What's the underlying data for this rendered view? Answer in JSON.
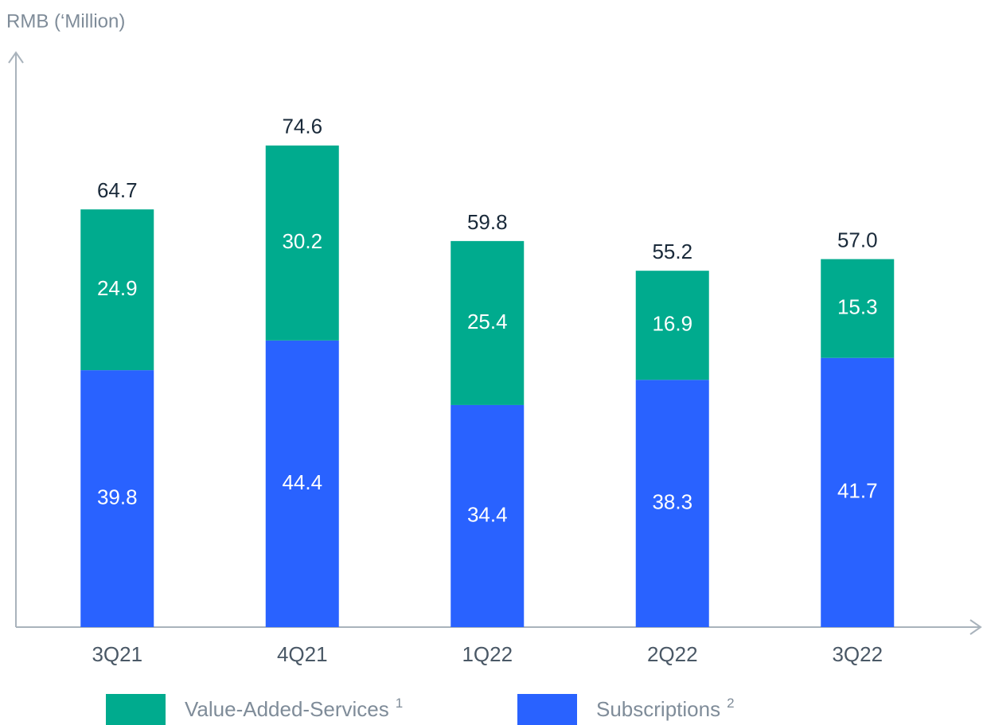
{
  "chart_data": {
    "type": "stacked_bar",
    "y_axis_label": "RMB (‘Million)",
    "categories": [
      "3Q21",
      "4Q21",
      "1Q22",
      "2Q22",
      "3Q22"
    ],
    "series": [
      {
        "name": "Value-Added-Services",
        "footnote": "1",
        "color": "#00ab8e",
        "values": [
          24.9,
          30.2,
          25.4,
          16.9,
          15.3
        ]
      },
      {
        "name": "Subscriptions",
        "footnote": "2",
        "color": "#2962ff",
        "values": [
          39.8,
          44.4,
          34.4,
          38.3,
          41.7
        ]
      }
    ],
    "totals": {
      "values": [
        64.7,
        74.6,
        59.8,
        55.2,
        57.0
      ],
      "value_labels": [
        "64.7",
        "74.6",
        "59.8",
        "55.2",
        "57.0"
      ]
    },
    "ylim": [
      0,
      89
    ]
  }
}
